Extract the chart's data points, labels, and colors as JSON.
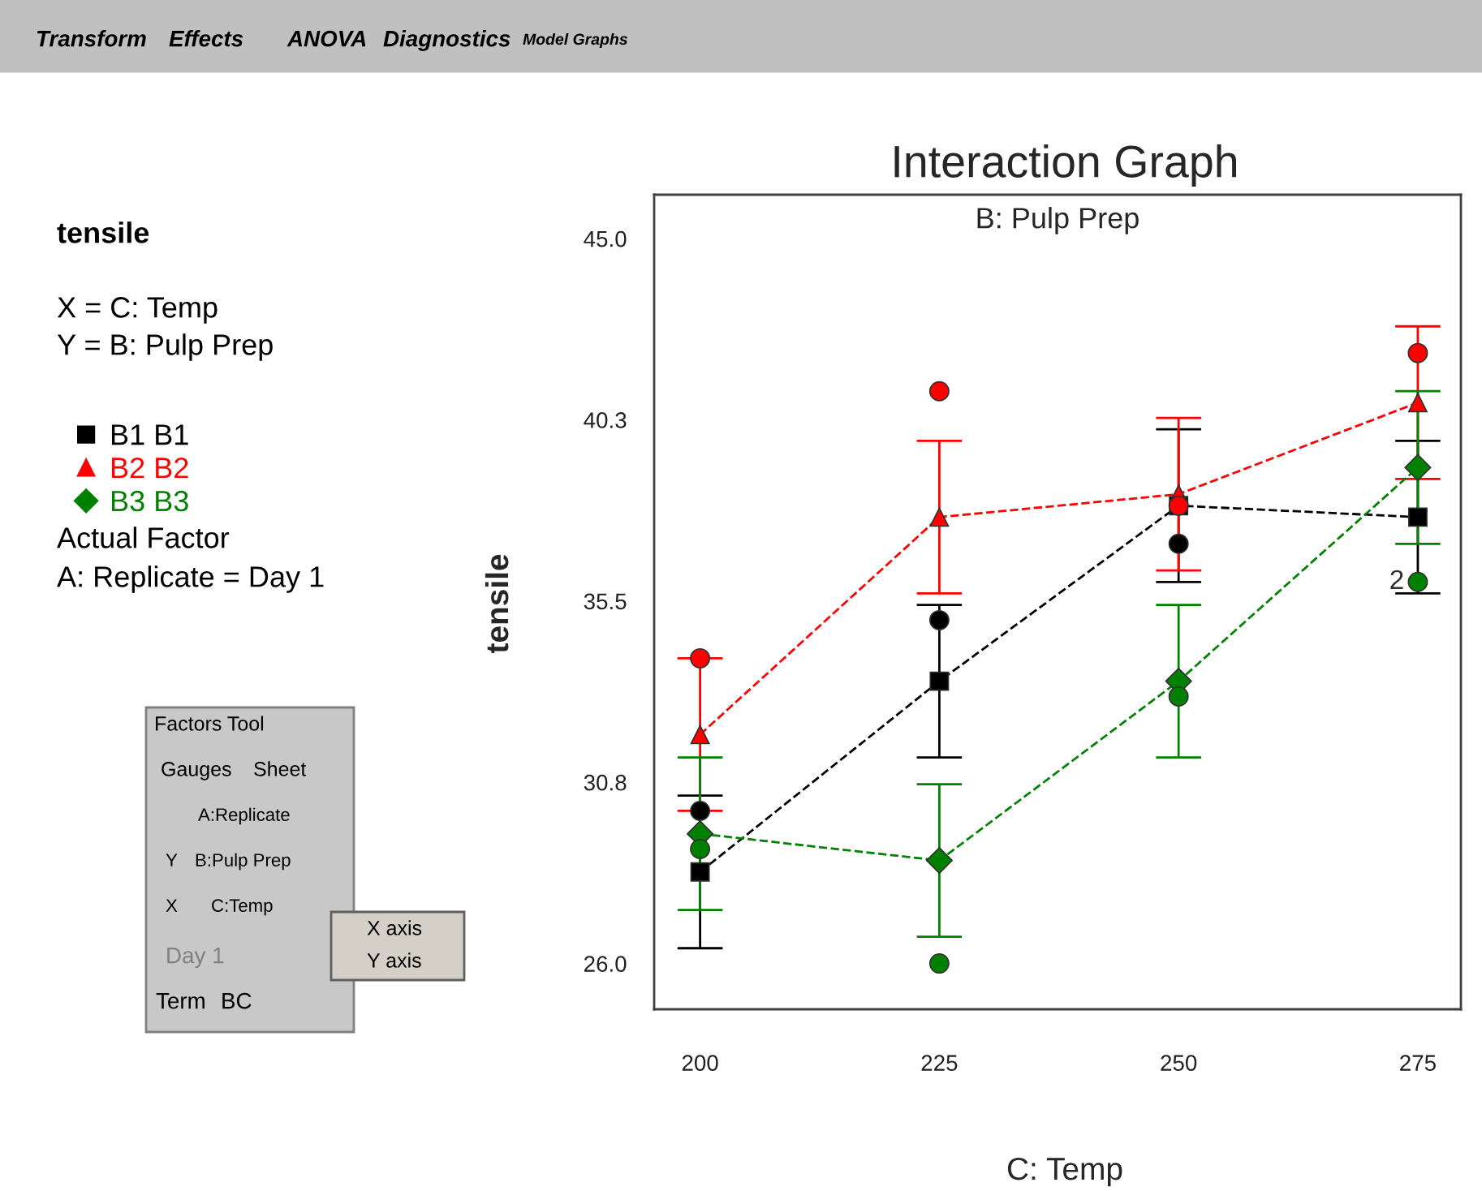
{
  "chart_data": {
    "type": "line",
    "title": "Interaction Graph",
    "subtitle": "B: Pulp Prep",
    "xlabel": "C: Temp",
    "ylabel": "tensile",
    "xlim": [
      195.2,
      279.5
    ],
    "xticks": [
      200,
      225,
      250,
      275
    ],
    "ylim": [
      24.8,
      46.15
    ],
    "yticks": [
      {
        "value": 26.0,
        "label": "26.0"
      },
      {
        "value": 30.75,
        "label": "30.8"
      },
      {
        "value": 35.5,
        "label": "35.5"
      },
      {
        "value": 40.25,
        "label": "40.3"
      },
      {
        "value": 45.0,
        "label": "45.0"
      }
    ],
    "grid": false,
    "legend": "left",
    "series": [
      {
        "name": "B1 B1",
        "color": "#000000",
        "marker": "square",
        "line_style": "dashed",
        "x": [
          200,
          225,
          250,
          275
        ],
        "values": [
          28.4,
          33.4,
          38.0,
          37.7
        ],
        "errors": [
          2.0,
          2.0,
          2.0,
          2.0
        ]
      },
      {
        "name": "B2 B2",
        "color": "#ff0000",
        "marker": "triangle",
        "line_style": "dashed",
        "x": [
          200,
          225,
          250,
          275
        ],
        "values": [
          32.0,
          37.7,
          38.3,
          40.7
        ],
        "errors": [
          2.0,
          2.0,
          2.0,
          2.0
        ]
      },
      {
        "name": "B3 B3",
        "color": "#008000",
        "marker": "diamond",
        "line_style": "dashed",
        "x": [
          200,
          225,
          250,
          275
        ],
        "values": [
          29.4,
          28.7,
          33.4,
          39.0
        ],
        "errors": [
          2.0,
          2.0,
          2.0,
          2.0
        ]
      },
      {
        "type": "scatter",
        "color": "#000000",
        "marker": "circle",
        "x": [
          200,
          225,
          250
        ],
        "values": [
          30.0,
          35.0,
          37.0
        ]
      },
      {
        "type": "scatter",
        "color": "#ff0000",
        "marker": "circle",
        "x": [
          200,
          225,
          250,
          275
        ],
        "values": [
          34.0,
          41.0,
          38.0,
          42.0
        ]
      },
      {
        "type": "scatter",
        "color": "#008000",
        "marker": "circle",
        "x": [
          200,
          225,
          250,
          275
        ],
        "values": [
          29.0,
          26.0,
          33.0,
          36.0
        ]
      }
    ],
    "annotations": [
      {
        "text": "2",
        "x": 275,
        "y": 36.0
      },
      "tensile",
      "X = C: Temp",
      "Y = B: Pulp Prep",
      "Actual Factor",
      "A: Replicate = Day 1",
      "Transform",
      "Effects",
      "ANOVA",
      "Diagnostics",
      "Model Graphs",
      "Factors Tool",
      "Gauges",
      "Sheet",
      "A:Replicate",
      "Y",
      "B:Pulp Prep",
      "X",
      "C:Temp",
      "Day 1",
      "Term",
      "BC",
      "X axis",
      "Y axis"
    ]
  }
}
